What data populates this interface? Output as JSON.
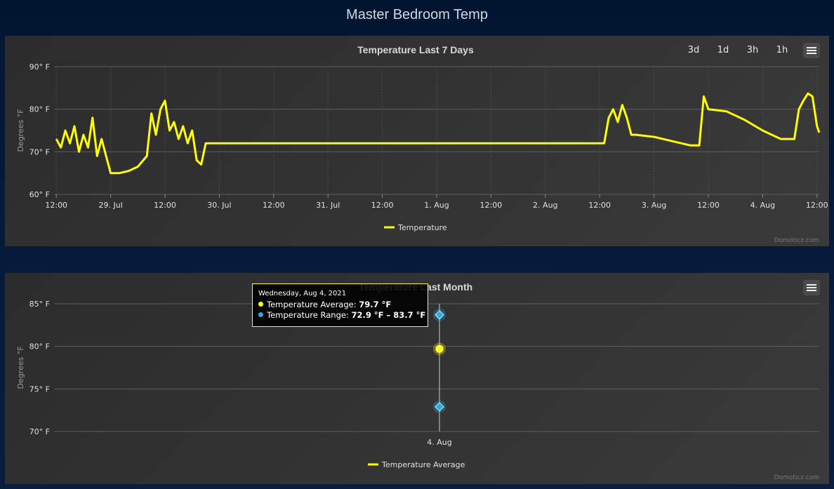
{
  "page": {
    "title": "Master Bedroom Temp"
  },
  "colors": {
    "temperature": "#ffff00",
    "range": "#29a9e0",
    "panel_bg": "#333333",
    "grid": "#606060"
  },
  "chart1": {
    "range_buttons": [
      "3d",
      "1d",
      "3h",
      "1h"
    ],
    "menu_icon": "hamburger-menu-icon",
    "credit": "Domoticz.com"
  },
  "chart2": {
    "menu_icon": "hamburger-menu-icon",
    "credit": "Domoticz.com",
    "tooltip": {
      "date": "Wednesday, Aug 4, 2021",
      "avg_label": "Temperature Average: ",
      "avg_value": "79.7 °F",
      "range_label": "Temperature Range: ",
      "range_value": "72.9 °F – 83.7 °F"
    }
  },
  "chart_data": [
    {
      "type": "line",
      "title": "Temperature Last 7 Days",
      "ylabel": "Degrees °F",
      "xlabel": "",
      "ylim": [
        60,
        90
      ],
      "xlim": [
        "2021-07-28 11:30",
        "2021-08-04 12:30"
      ],
      "y_ticks": [
        "60° F",
        "70° F",
        "80° F",
        "90° F"
      ],
      "x_ticks": [
        "12:00",
        "29. Jul",
        "12:00",
        "30. Jul",
        "12:00",
        "31. Jul",
        "12:00",
        "1. Aug",
        "12:00",
        "2. Aug",
        "12:00",
        "3. Aug",
        "12:00",
        "4. Aug",
        "12:00"
      ],
      "grid": true,
      "legend": "bottom-center",
      "series": [
        {
          "name": "Temperature",
          "x": [
            "2021-07-28 12:00",
            "2021-07-28 13:00",
            "2021-07-28 14:00",
            "2021-07-28 15:00",
            "2021-07-28 16:00",
            "2021-07-28 17:00",
            "2021-07-28 18:00",
            "2021-07-28 19:00",
            "2021-07-28 20:00",
            "2021-07-28 21:00",
            "2021-07-28 22:00",
            "2021-07-29 00:00",
            "2021-07-29 02:00",
            "2021-07-29 04:00",
            "2021-07-29 06:00",
            "2021-07-29 08:00",
            "2021-07-29 09:00",
            "2021-07-29 10:00",
            "2021-07-29 11:00",
            "2021-07-29 12:00",
            "2021-07-29 13:00",
            "2021-07-29 14:00",
            "2021-07-29 15:00",
            "2021-07-29 16:00",
            "2021-07-29 17:00",
            "2021-07-29 18:00",
            "2021-07-29 19:00",
            "2021-07-29 20:00",
            "2021-07-29 21:00",
            "2021-07-30 00:00",
            "2021-07-31 00:00",
            "2021-08-01 00:00",
            "2021-08-02 00:00",
            "2021-08-02 12:00",
            "2021-08-02 13:00",
            "2021-08-02 14:00",
            "2021-08-02 15:00",
            "2021-08-02 16:00",
            "2021-08-02 17:00",
            "2021-08-02 18:00",
            "2021-08-02 19:00",
            "2021-08-02 20:00",
            "2021-08-03 00:00",
            "2021-08-03 04:00",
            "2021-08-03 08:00",
            "2021-08-03 10:00",
            "2021-08-03 11:00",
            "2021-08-03 12:00",
            "2021-08-03 16:00",
            "2021-08-03 20:00",
            "2021-08-04 00:00",
            "2021-08-04 04:00",
            "2021-08-04 07:00",
            "2021-08-04 08:00",
            "2021-08-04 09:00",
            "2021-08-04 10:00",
            "2021-08-04 11:00",
            "2021-08-04 12:00",
            "2021-08-04 12:30"
          ],
          "y": [
            73,
            71,
            75,
            72,
            76,
            70,
            74,
            71,
            78,
            69,
            73,
            65,
            65,
            65.5,
            66.5,
            69,
            79,
            74,
            80,
            82,
            75,
            77,
            73,
            76,
            72,
            75,
            68,
            67,
            72,
            72,
            72,
            72,
            72,
            72,
            72,
            78,
            80,
            77,
            81,
            78,
            74,
            74,
            73.5,
            72.5,
            71.5,
            71.5,
            83,
            80,
            79.5,
            77.5,
            75,
            73,
            73,
            80,
            82,
            83.7,
            83,
            76,
            74.5
          ]
        }
      ]
    },
    {
      "type": "scatter",
      "title": "Temperature Last Month",
      "ylabel": "Degrees °F",
      "xlabel": "",
      "ylim": [
        70,
        85
      ],
      "y_ticks": [
        "70° F",
        "75° F",
        "80° F",
        "85° F"
      ],
      "categories": [
        "4. Aug"
      ],
      "grid": true,
      "legend": "bottom-center",
      "series": [
        {
          "name": "Temperature Average",
          "values": [
            79.7
          ]
        },
        {
          "name": "Temperature Range",
          "low": [
            72.9
          ],
          "high": [
            83.7
          ]
        }
      ]
    }
  ]
}
